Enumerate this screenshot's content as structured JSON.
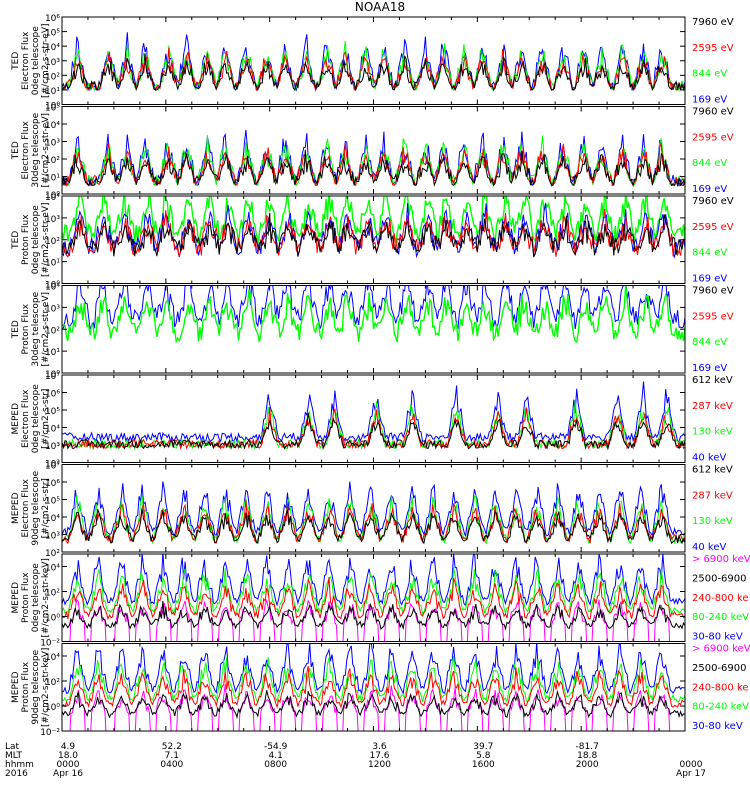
{
  "title": "NOAA18",
  "colors": {
    "black": "#000000",
    "red": "#ff0000",
    "green": "#00ff00",
    "blue": "#0000ff",
    "magenta": "#ff00ff"
  },
  "footer": {
    "row_labels": [
      "Lat",
      "MLT",
      "hhmm",
      "2016"
    ],
    "ticks": [
      {
        "lat": "4.9",
        "mlt": "18.0",
        "hhmm": "0000",
        "date": "Apr 16"
      },
      {
        "lat": "52.2",
        "mlt": "7.1",
        "hhmm": "0400",
        "date": ""
      },
      {
        "lat": "-54.9",
        "mlt": "4.1",
        "hhmm": "0800",
        "date": ""
      },
      {
        "lat": "3.6",
        "mlt": "17.6",
        "hhmm": "1200",
        "date": ""
      },
      {
        "lat": "39.7",
        "mlt": "5.8",
        "hhmm": "1600",
        "date": ""
      },
      {
        "lat": "-81.7",
        "mlt": "18.8",
        "hhmm": "2000",
        "date": ""
      },
      {
        "lat": "",
        "mlt": "",
        "hhmm": "0000",
        "date": "Apr 17"
      }
    ]
  },
  "chart_data": [
    {
      "type": "line",
      "ylabel": [
        "TED",
        "Electron Flux",
        "0deg telescope",
        "[#/cm2-s-str-eV]"
      ],
      "yscale": "log",
      "ylim_exp": [
        0,
        6
      ],
      "ytick_labels": [
        "10⁰",
        "10¹",
        "10²",
        "10³",
        "10⁴",
        "10⁵",
        "10⁶"
      ],
      "x_range_hours": [
        0,
        24
      ],
      "baseline_exp": 1.0,
      "style": "spiky",
      "legend": [
        {
          "label": "7960 eV",
          "color": "#000000"
        },
        {
          "label": "2595 eV",
          "color": "#ff0000"
        },
        {
          "label": "844 eV",
          "color": "#00ff00"
        },
        {
          "label": "169 eV",
          "color": "#0000ff"
        }
      ],
      "draw_order": [
        "#0000ff",
        "#00ff00",
        "#ff0000",
        "#000000"
      ],
      "peak_hours": [
        0.6,
        1.8,
        2.5,
        3.2,
        4.1,
        4.8,
        5.6,
        6.3,
        7.1,
        7.9,
        8.6,
        9.4,
        10.2,
        10.9,
        11.7,
        12.4,
        13.2,
        14.0,
        14.7,
        15.5,
        16.2,
        17.0,
        17.7,
        18.5,
        19.3,
        20.1,
        20.8,
        21.6,
        22.4,
        23.1
      ]
    },
    {
      "type": "line",
      "ylabel": [
        "TED",
        "Electron Flux",
        "30deg telescope",
        "[#/cm2-s-str-eV]"
      ],
      "yscale": "log",
      "ylim_exp": [
        0,
        5
      ],
      "ytick_labels": [
        "10⁰",
        "10¹",
        "10²",
        "10³",
        "10⁴",
        "10⁵"
      ],
      "x_range_hours": [
        0,
        24
      ],
      "baseline_exp": 0.5,
      "style": "spiky",
      "legend": [
        {
          "label": "7960 eV",
          "color": "#000000"
        },
        {
          "label": "2595 eV",
          "color": "#ff0000"
        },
        {
          "label": "844 eV",
          "color": "#00ff00"
        },
        {
          "label": "169 eV",
          "color": "#0000ff"
        }
      ],
      "draw_order": [
        "#0000ff",
        "#00ff00",
        "#ff0000",
        "#000000"
      ],
      "peak_hours": [
        0.6,
        1.8,
        2.5,
        3.2,
        4.1,
        4.8,
        5.6,
        6.3,
        7.1,
        7.9,
        8.6,
        9.4,
        10.2,
        10.9,
        11.7,
        12.4,
        13.2,
        14.0,
        14.7,
        15.5,
        16.2,
        17.0,
        17.7,
        18.5,
        19.3,
        20.1,
        20.8,
        21.6,
        22.4,
        23.1
      ]
    },
    {
      "type": "line",
      "ylabel": [
        "TED",
        "Proton Flux",
        "0deg telescope",
        "[#/cm2-s-str-eV]"
      ],
      "yscale": "log",
      "ylim_exp": [
        0,
        4
      ],
      "ytick_labels": [
        "10⁰",
        "10¹",
        "10²",
        "10³",
        "10⁴"
      ],
      "x_range_hours": [
        0,
        24
      ],
      "baseline_exp": 1.2,
      "style": "noisy",
      "legend": [
        {
          "label": "7960 eV",
          "color": "#000000"
        },
        {
          "label": "2595 eV",
          "color": "#ff0000"
        },
        {
          "label": "844 eV",
          "color": "#00ff00"
        },
        {
          "label": "169 eV",
          "color": "#0000ff"
        }
      ],
      "draw_order": [
        "#00ff00",
        "#0000ff",
        "#ff0000",
        "#000000"
      ],
      "peak_hours": [
        0.7,
        1.6,
        2.4,
        3.3,
        4.0,
        4.9,
        5.7,
        6.4,
        7.2,
        8.0,
        8.7,
        9.5,
        10.3,
        11.0,
        11.8,
        12.5,
        13.3,
        14.1,
        14.8,
        15.6,
        16.3,
        17.1,
        17.8,
        18.6,
        19.4,
        20.2,
        20.9,
        21.7,
        22.5,
        23.2
      ]
    },
    {
      "type": "line",
      "ylabel": [
        "TED",
        "Proton Flux",
        "30deg telescope",
        "[#/cm2-s-str-eV]"
      ],
      "yscale": "log",
      "ylim_exp": [
        0,
        4
      ],
      "ytick_labels": [
        "10⁰",
        "10¹",
        "10²",
        "10³",
        "10⁴"
      ],
      "x_range_hours": [
        0,
        24
      ],
      "baseline_exp": 1.4,
      "style": "noisy",
      "legend": [
        {
          "label": "7960 eV",
          "color": "#000000"
        },
        {
          "label": "2595 eV",
          "color": "#ff0000"
        },
        {
          "label": "844 eV",
          "color": "#00ff00"
        },
        {
          "label": "169 eV",
          "color": "#0000ff"
        }
      ],
      "draw_order": [
        "#0000ff",
        "#00ff00"
      ],
      "peak_hours": [
        0.7,
        1.6,
        2.4,
        3.3,
        4.0,
        4.9,
        5.7,
        6.4,
        7.2,
        8.0,
        8.7,
        9.5,
        10.3,
        11.0,
        11.8,
        12.5,
        13.3,
        14.1,
        14.8,
        15.6,
        16.3,
        17.1,
        17.8,
        18.6,
        19.4,
        20.2,
        20.9,
        21.7,
        22.5,
        23.2
      ]
    },
    {
      "type": "line",
      "ylabel": [
        "MEPED",
        "Electron Flux",
        "0deg telescope",
        "[#/cm2-s-str]"
      ],
      "yscale": "log",
      "ylim_exp": [
        2,
        7
      ],
      "ytick_labels": [
        "10²",
        "10³",
        "10⁴",
        "10⁵",
        "10⁶",
        "10⁷"
      ],
      "x_range_hours": [
        0,
        24
      ],
      "baseline_exp": 2.8,
      "style": "bumps",
      "legend": [
        {
          "label": "612 keV",
          "color": "#000000"
        },
        {
          "label": "287 keV",
          "color": "#ff0000"
        },
        {
          "label": "130 keV",
          "color": "#00ff00"
        },
        {
          "label": "40 keV",
          "color": "#0000ff"
        }
      ],
      "draw_order": [
        "#0000ff",
        "#00ff00",
        "#ff0000",
        "#000000"
      ],
      "peak_hours": [
        8.0,
        9.5,
        10.5,
        12.1,
        13.5,
        15.2,
        16.8,
        17.9,
        19.8,
        21.4,
        22.4,
        23.3
      ]
    },
    {
      "type": "line",
      "ylabel": [
        "MEPED",
        "Electron Flux",
        "90deg telescope",
        "[#/cm2-s-str]"
      ],
      "yscale": "log",
      "ylim_exp": [
        2,
        7
      ],
      "ytick_labels": [
        "10²",
        "10³",
        "10⁴",
        "10⁵",
        "10⁶",
        "10⁷"
      ],
      "x_range_hours": [
        0,
        24
      ],
      "baseline_exp": 2.5,
      "style": "bumps",
      "legend": [
        {
          "label": "612 keV",
          "color": "#000000"
        },
        {
          "label": "287 keV",
          "color": "#ff0000"
        },
        {
          "label": "130 keV",
          "color": "#00ff00"
        },
        {
          "label": "40 keV",
          "color": "#0000ff"
        }
      ],
      "draw_order": [
        "#0000ff",
        "#00ff00",
        "#ff0000",
        "#000000"
      ],
      "peak_hours": [
        0.6,
        1.4,
        2.3,
        3.1,
        3.9,
        4.7,
        5.5,
        6.3,
        7.1,
        7.9,
        8.7,
        9.5,
        10.3,
        11.1,
        11.9,
        12.7,
        13.5,
        14.3,
        15.1,
        15.9,
        16.7,
        17.5,
        18.3,
        19.1,
        19.9,
        20.7,
        21.5,
        22.3,
        23.1
      ]
    },
    {
      "type": "line",
      "ylabel": [
        "MEPED",
        "Proton Flux",
        "0deg telescope",
        "[#/cm2-s-str-keV]"
      ],
      "yscale": "log",
      "ylim_exp": [
        -2,
        5
      ],
      "ytick_labels": [
        "10⁻²",
        "10⁰",
        "10²",
        "10⁴"
      ],
      "ytick_exps": [
        -2,
        0,
        2,
        4
      ],
      "x_range_hours": [
        0,
        24
      ],
      "baseline_exp": 0.8,
      "style": "protons",
      "legend": [
        {
          "label": "> 6900 keV",
          "color": "#ff00ff"
        },
        {
          "label": "2500-6900",
          "color": "#000000"
        },
        {
          "label": "240-800 ke",
          "color": "#ff0000"
        },
        {
          "label": "80-240 keV",
          "color": "#00ff00"
        },
        {
          "label": "30-80 keV",
          "color": "#0000ff"
        }
      ],
      "draw_order": [
        "#0000ff",
        "#00ff00",
        "#ff0000",
        "#ff00ff",
        "#000000"
      ],
      "peak_hours": [
        0.6,
        1.4,
        2.3,
        3.1,
        3.9,
        4.7,
        5.5,
        6.3,
        7.1,
        7.9,
        8.7,
        9.5,
        10.3,
        11.1,
        11.9,
        12.7,
        13.5,
        14.3,
        15.1,
        15.9,
        16.7,
        17.5,
        18.3,
        19.1,
        19.9,
        20.7,
        21.5,
        22.3,
        23.1
      ]
    },
    {
      "type": "line",
      "ylabel": [
        "MEPED",
        "Proton Flux",
        "90deg telescope",
        "[#/cm2-s-str-keV]"
      ],
      "yscale": "log",
      "ylim_exp": [
        -2,
        5
      ],
      "ytick_labels": [
        "10⁻²",
        "10⁰",
        "10²",
        "10⁴"
      ],
      "ytick_exps": [
        -2,
        0,
        2,
        4
      ],
      "x_range_hours": [
        0,
        24
      ],
      "baseline_exp": 0.9,
      "style": "protons",
      "legend": [
        {
          "label": "> 6900 keV",
          "color": "#ff00ff"
        },
        {
          "label": "2500-6900",
          "color": "#000000"
        },
        {
          "label": "240-800 ke",
          "color": "#ff0000"
        },
        {
          "label": "80-240 keV",
          "color": "#00ff00"
        },
        {
          "label": "30-80 keV",
          "color": "#0000ff"
        }
      ],
      "draw_order": [
        "#0000ff",
        "#00ff00",
        "#ff0000",
        "#ff00ff",
        "#000000"
      ],
      "peak_hours": [
        0.6,
        1.4,
        2.3,
        3.1,
        3.9,
        4.7,
        5.5,
        6.3,
        7.1,
        7.9,
        8.7,
        9.5,
        10.3,
        11.1,
        11.9,
        12.7,
        13.5,
        14.3,
        15.1,
        15.9,
        16.7,
        17.5,
        18.3,
        19.1,
        19.9,
        20.7,
        21.5,
        22.3,
        23.1
      ]
    }
  ]
}
